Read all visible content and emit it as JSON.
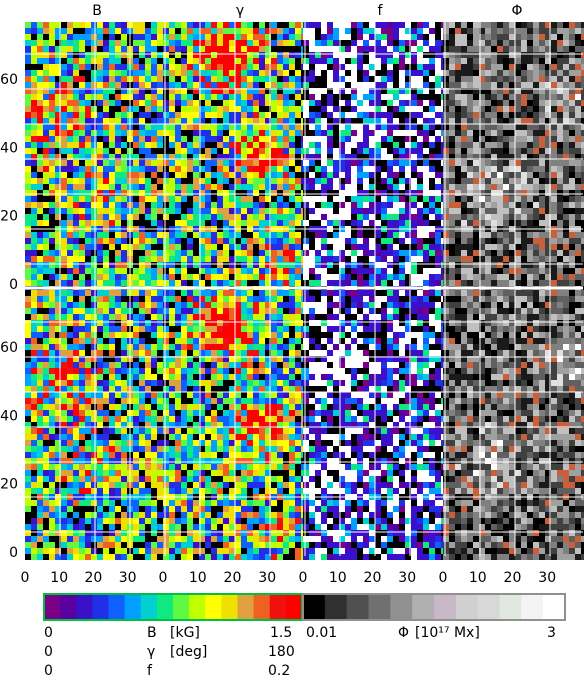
{
  "chart_data": {
    "type": "heatmap",
    "panel_titles": [
      "B",
      "γ",
      "f",
      "Φ"
    ],
    "rows": 2,
    "y_ticks": [
      0,
      20,
      40,
      60
    ],
    "x_ticks": [
      0,
      10,
      20,
      30
    ],
    "x_range": [
      0,
      38
    ],
    "y_range": [
      0,
      75
    ],
    "grid": true,
    "colorbar_left": {
      "colors": [
        "#7a0087",
        "#5a00a0",
        "#3a10c8",
        "#2030e8",
        "#1060ff",
        "#00a0ff",
        "#00d0d0",
        "#10e880",
        "#60f840",
        "#c0ff00",
        "#ffff00",
        "#f0e000",
        "#e0a040",
        "#f06020",
        "#f01010",
        "#ff0000"
      ]
    },
    "colorbar_right": {
      "colors": [
        "#000000",
        "#303030",
        "#505050",
        "#707070",
        "#909090",
        "#b0b0b0",
        "#c8b8c8",
        "#d0d0d0",
        "#d8d8d8",
        "#e0e8e0",
        "#f4f4f4",
        "#ffffff"
      ]
    },
    "scale_labels": [
      {
        "quantity": "B",
        "unit": "[kG]",
        "min": "0",
        "max": "1.5"
      },
      {
        "quantity": "γ",
        "unit": "[deg]",
        "min": "0",
        "max": "180"
      },
      {
        "quantity": "f",
        "unit": "",
        "min": "0",
        "max": "0.2"
      }
    ],
    "phi_label": {
      "quantity": "Φ",
      "unit": "[10¹⁷ Mx]",
      "min": "0.01",
      "max": "3"
    }
  }
}
